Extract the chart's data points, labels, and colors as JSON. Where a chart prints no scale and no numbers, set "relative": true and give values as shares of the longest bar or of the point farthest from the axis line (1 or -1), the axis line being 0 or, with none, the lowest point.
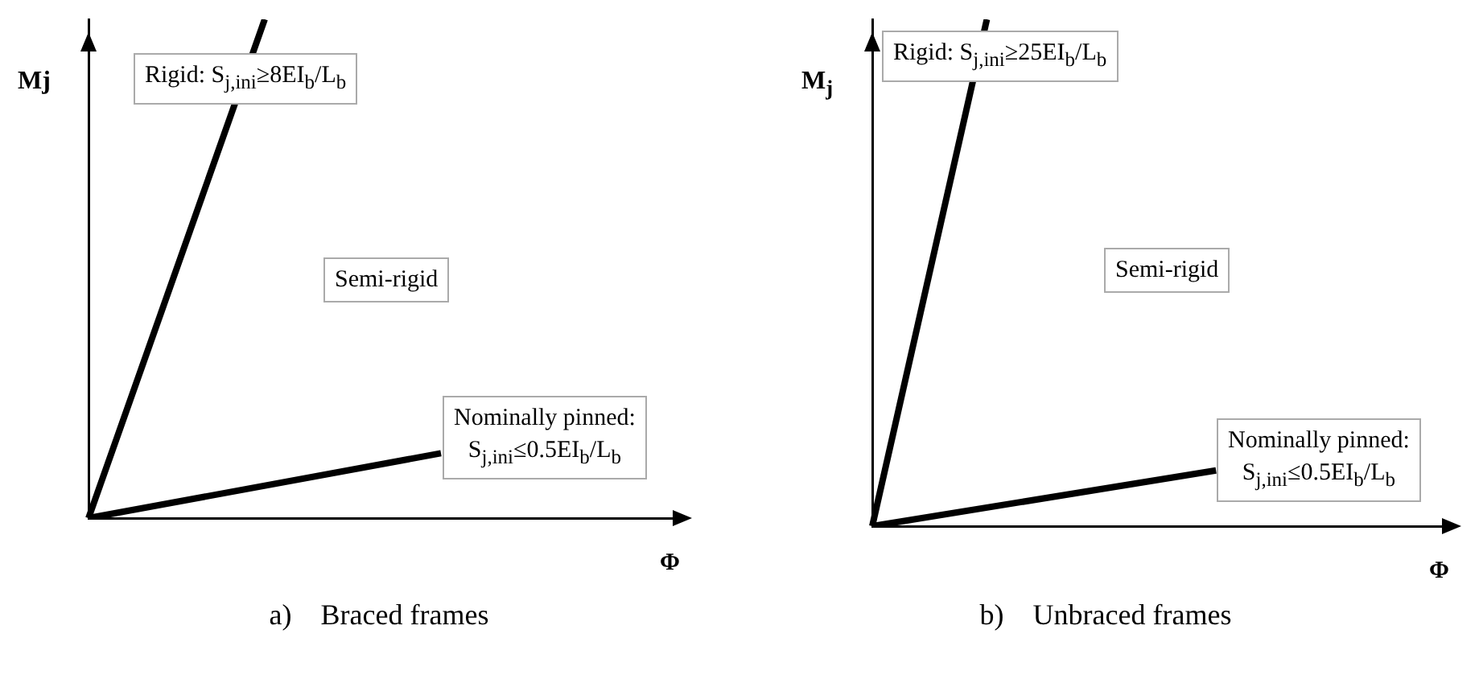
{
  "chart_data": [
    {
      "type": "line",
      "title": "a)    Braced frames",
      "xlabel": "Φ",
      "ylabel": "Mj",
      "relative": true,
      "marker": "none",
      "categories": [
        null,
        null,
        null,
        null,
        null,
        null,
        null,
        null,
        null,
        null,
        null
      ],
      "series": [
        {
          "color": "#000000",
          "values": [
            0,
            null,
            null,
            1,
            null,
            null,
            null,
            null,
            null,
            null,
            null
          ]
        },
        {
          "color": "#000000",
          "values": [
            0,
            null,
            null,
            null,
            null,
            null,
            0.13,
            null,
            null,
            null,
            null
          ]
        }
      ],
      "annotations": [
        "Rigid: S$_{j,ini}$≥8EI$_{b}$/L$_{b}$",
        "Semi-rigid",
        "Nominally pinned:\nS$_{j,ini}$≤0.5EI$_{b}$/L$_{b}$"
      ]
    },
    {
      "type": "line",
      "title": "b)    Unbraced frames",
      "xlabel": "Φ",
      "ylabel": "M$_{j}$",
      "relative": true,
      "marker": "none",
      "categories": [
        null,
        null,
        null,
        null,
        null,
        null,
        null,
        null,
        null,
        null,
        null
      ],
      "series": [
        {
          "color": "#000000",
          "values": [
            0,
            null,
            1,
            null,
            null,
            null,
            null,
            null,
            null,
            null,
            null
          ]
        },
        {
          "color": "#000000",
          "values": [
            0,
            null,
            null,
            null,
            null,
            null,
            0.11,
            null,
            null,
            null,
            null
          ]
        }
      ],
      "annotations": [
        "Rigid: S$_{j,ini}$≥25EI$_{b}$/L$_{b}$",
        "Semi-rigid",
        "Nominally pinned:\nS$_{j,ini}$≤0.5EI$_{b}$/L$_{b}$"
      ]
    }
  ]
}
